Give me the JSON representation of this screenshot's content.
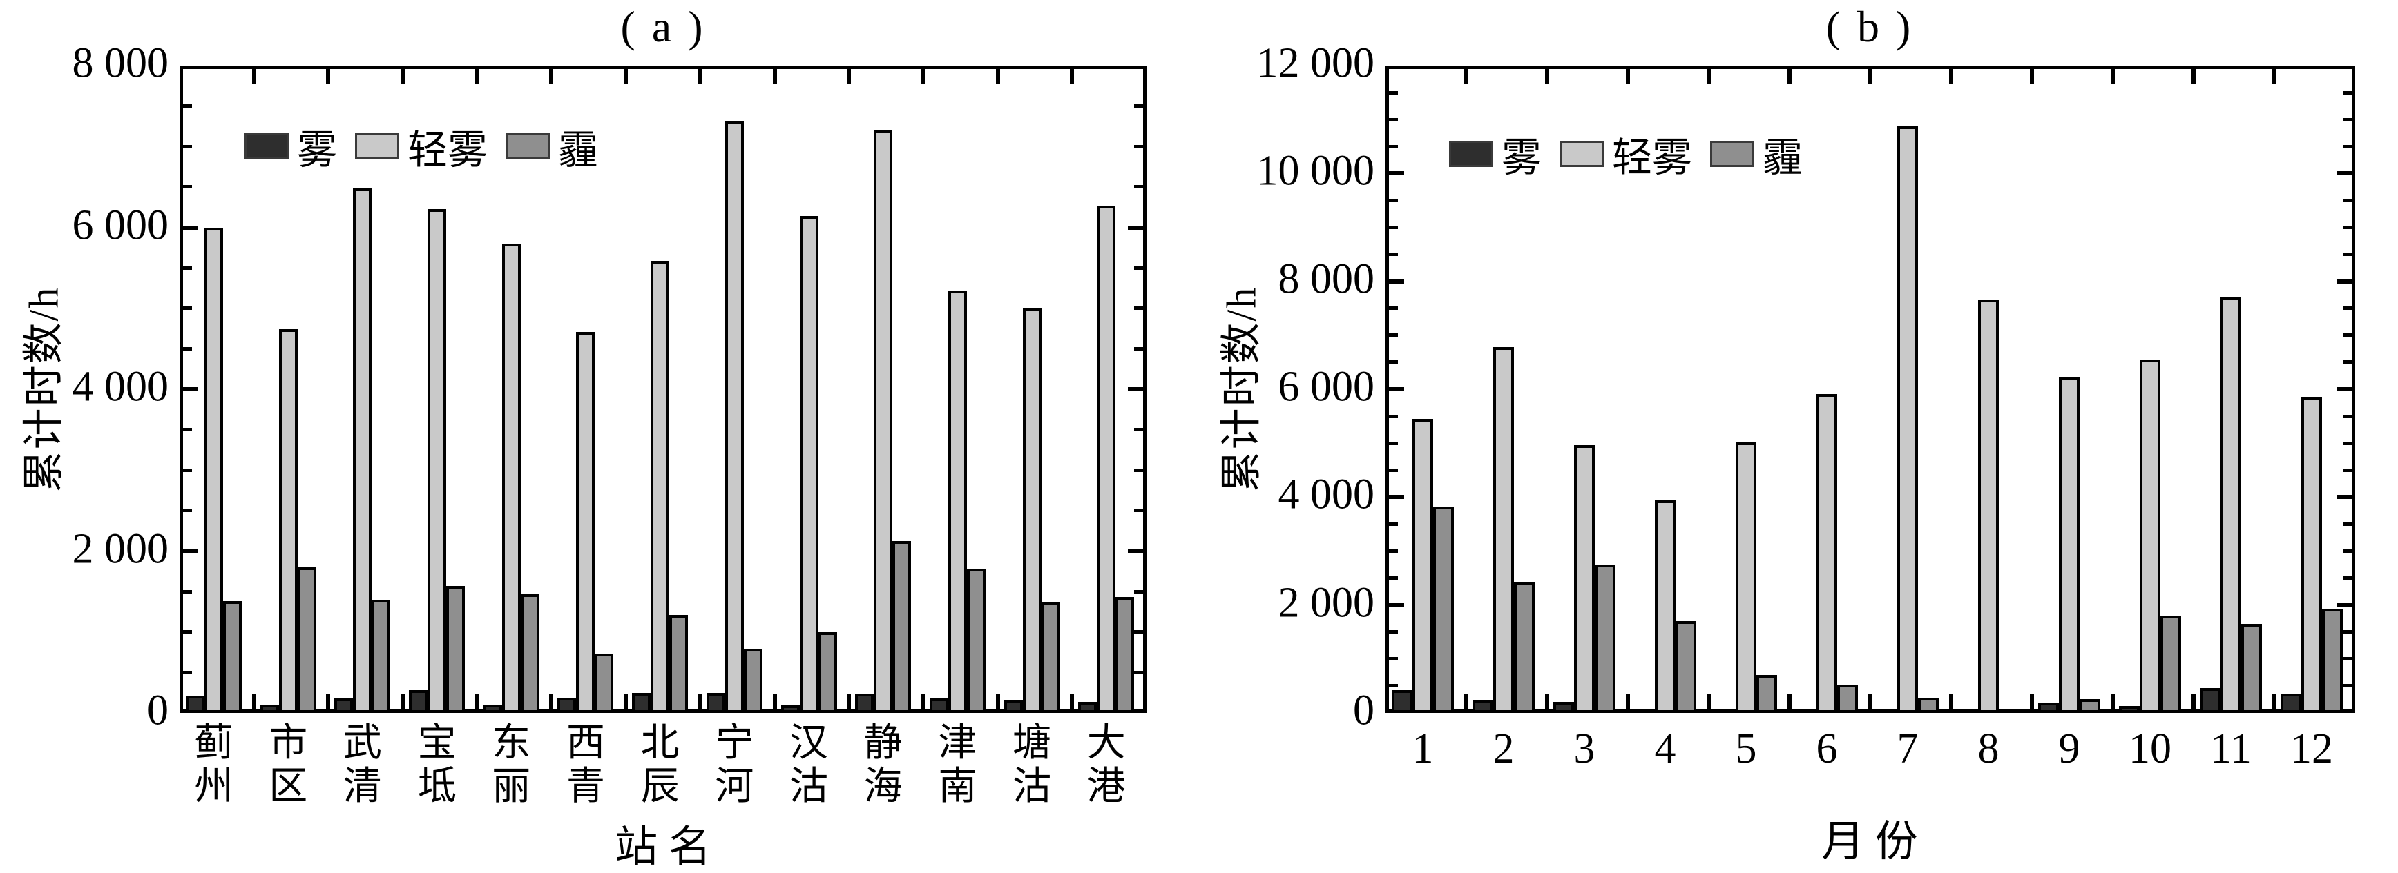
{
  "page": {
    "background": "#ffffff",
    "figure_type": "two-panel grouped bar figure"
  },
  "colors": {
    "fog": "#2e2e2e",
    "mist": "#c9c9c9",
    "haze": "#8f8f8f",
    "axis": "#000000"
  },
  "chart_data": [
    {
      "type": "bar",
      "panel": "a",
      "title": "( a )",
      "ylabel": "累计时数/h",
      "xlabel": "站 名",
      "ylim": [
        0,
        8000
      ],
      "ytick_interval": 2000,
      "yminor_interval": 500,
      "grid": "off",
      "legend_position": "top-left-inside",
      "yticks": [
        {
          "value": 0,
          "label": "0"
        },
        {
          "value": 2000,
          "label": "2 000"
        },
        {
          "value": 4000,
          "label": "4 000"
        },
        {
          "value": 6000,
          "label": "6 000"
        },
        {
          "value": 8000,
          "label": "8 000"
        }
      ],
      "categories": [
        "蓟州",
        "市区",
        "武清",
        "宝坻",
        "东丽",
        "西青",
        "北辰",
        "宁河",
        "汉沽",
        "静海",
        "津南",
        "塘沽",
        "大港"
      ],
      "series": [
        {
          "name": "雾",
          "color": "#2e2e2e",
          "values": [
            210,
            100,
            180,
            280,
            100,
            190,
            250,
            250,
            90,
            240,
            180,
            150,
            140
          ]
        },
        {
          "name": "轻雾",
          "color": "#c9c9c9",
          "values": [
            6000,
            4740,
            6480,
            6230,
            5800,
            4710,
            5590,
            7320,
            6140,
            7210,
            5220,
            5010,
            6270
          ]
        },
        {
          "name": "霾",
          "color": "#8f8f8f",
          "values": [
            1380,
            1800,
            1400,
            1570,
            1470,
            730,
            1210,
            790,
            1000,
            2120,
            1780,
            1370,
            1430
          ]
        }
      ]
    },
    {
      "type": "bar",
      "panel": "b",
      "title": "( b )",
      "ylabel": "累计时数/h",
      "xlabel": "月 份",
      "ylim": [
        0,
        12000
      ],
      "ytick_interval": 2000,
      "yminor_interval": 500,
      "grid": "off",
      "legend_position": "top-left-inside",
      "yticks": [
        {
          "value": 0,
          "label": "0"
        },
        {
          "value": 2000,
          "label": "2 000"
        },
        {
          "value": 4000,
          "label": "4 000"
        },
        {
          "value": 6000,
          "label": "6 000"
        },
        {
          "value": 8000,
          "label": "8 000"
        },
        {
          "value": 10000,
          "label": "10 000"
        },
        {
          "value": 12000,
          "label": "12 000"
        }
      ],
      "categories": [
        "1",
        "2",
        "3",
        "4",
        "5",
        "6",
        "7",
        "8",
        "9",
        "10",
        "11",
        "12"
      ],
      "series": [
        {
          "name": "雾",
          "color": "#2e2e2e",
          "values": [
            420,
            230,
            200,
            0,
            0,
            0,
            0,
            0,
            190,
            130,
            460,
            360
          ]
        },
        {
          "name": "轻雾",
          "color": "#c9c9c9",
          "values": [
            5450,
            6780,
            4960,
            3940,
            5010,
            5910,
            10880,
            7660,
            6230,
            6550,
            7720,
            5860
          ]
        },
        {
          "name": "霾",
          "color": "#8f8f8f",
          "values": [
            3820,
            2420,
            2750,
            1700,
            700,
            520,
            280,
            0,
            250,
            1810,
            1650,
            1930
          ]
        }
      ]
    }
  ]
}
